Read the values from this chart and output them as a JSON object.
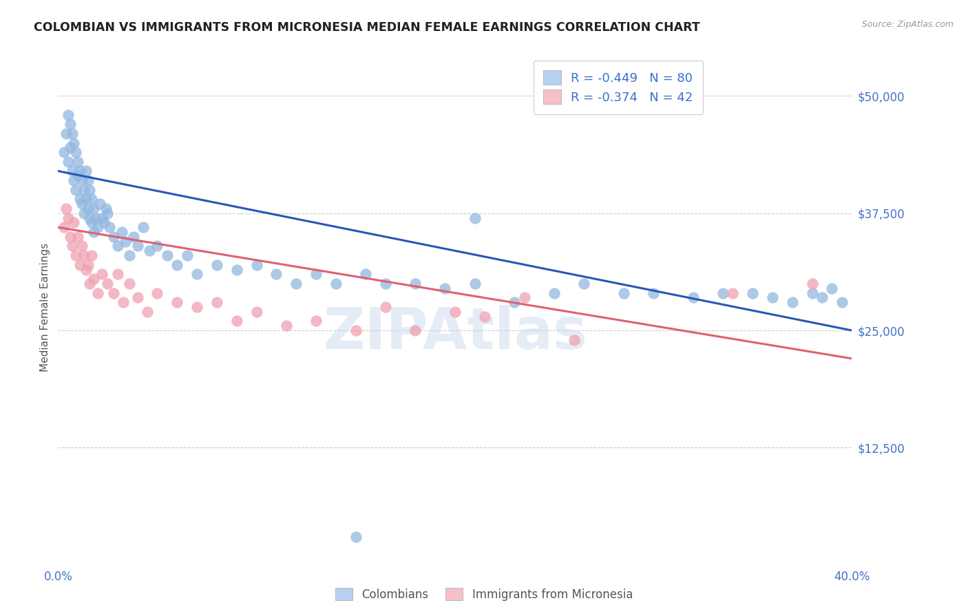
{
  "title": "COLOMBIAN VS IMMIGRANTS FROM MICRONESIA MEDIAN FEMALE EARNINGS CORRELATION CHART",
  "source": "Source: ZipAtlas.com",
  "ylabel": "Median Female Earnings",
  "xlim": [
    0.0,
    0.4
  ],
  "ylim": [
    0,
    55000
  ],
  "yticks": [
    12500,
    25000,
    37500,
    50000
  ],
  "ytick_labels": [
    "$12,500",
    "$25,000",
    "$37,500",
    "$50,000"
  ],
  "xticks": [
    0.0,
    0.05,
    0.1,
    0.15,
    0.2,
    0.25,
    0.3,
    0.35,
    0.4
  ],
  "xtick_labels": [
    "0.0%",
    "",
    "",
    "",
    "",
    "",
    "",
    "",
    "40.0%"
  ],
  "legend_entries": [
    {
      "label": "R = -0.449   N = 80",
      "color": "#b8d0f0"
    },
    {
      "label": "R = -0.374   N = 42",
      "color": "#f5c0ca"
    }
  ],
  "legend_bottom": [
    "Colombians",
    "Immigrants from Micronesia"
  ],
  "legend_bottom_colors": [
    "#b8d0f0",
    "#f5c0ca"
  ],
  "blue_color": "#92b8e0",
  "pink_color": "#f0a0b0",
  "blue_line_color": "#2855b8",
  "pink_line_color": "#e06070",
  "blue_line_x": [
    0.0,
    0.4
  ],
  "blue_line_y": [
    42000,
    25000
  ],
  "pink_line_x": [
    0.0,
    0.4
  ],
  "pink_line_y": [
    36000,
    22000
  ],
  "grid_color": "#cccccc",
  "bg_color": "#ffffff",
  "title_color": "#222222",
  "axis_label_color": "#555555",
  "tick_color": "#4472c4",
  "watermark_color": "#c5d5ea",
  "watermark_alpha": 0.45,
  "blue_scatter_x": [
    0.003,
    0.004,
    0.005,
    0.005,
    0.006,
    0.006,
    0.007,
    0.007,
    0.008,
    0.008,
    0.009,
    0.009,
    0.01,
    0.01,
    0.011,
    0.011,
    0.012,
    0.012,
    0.013,
    0.013,
    0.014,
    0.014,
    0.015,
    0.015,
    0.016,
    0.016,
    0.017,
    0.017,
    0.018,
    0.018,
    0.019,
    0.02,
    0.021,
    0.022,
    0.023,
    0.024,
    0.025,
    0.026,
    0.028,
    0.03,
    0.032,
    0.034,
    0.036,
    0.038,
    0.04,
    0.043,
    0.046,
    0.05,
    0.055,
    0.06,
    0.065,
    0.07,
    0.08,
    0.09,
    0.1,
    0.11,
    0.12,
    0.13,
    0.14,
    0.155,
    0.165,
    0.18,
    0.195,
    0.21,
    0.23,
    0.25,
    0.265,
    0.285,
    0.3,
    0.32,
    0.335,
    0.35,
    0.36,
    0.37,
    0.38,
    0.385,
    0.39,
    0.395,
    0.21,
    0.15
  ],
  "blue_scatter_y": [
    44000,
    46000,
    48000,
    43000,
    47000,
    44500,
    46000,
    42000,
    45000,
    41000,
    44000,
    40000,
    43000,
    41500,
    42000,
    39000,
    41000,
    38500,
    40000,
    37500,
    42000,
    39000,
    41000,
    38000,
    40000,
    37000,
    39000,
    36500,
    38000,
    35500,
    37000,
    36000,
    38500,
    37000,
    36500,
    38000,
    37500,
    36000,
    35000,
    34000,
    35500,
    34500,
    33000,
    35000,
    34000,
    36000,
    33500,
    34000,
    33000,
    32000,
    33000,
    31000,
    32000,
    31500,
    32000,
    31000,
    30000,
    31000,
    30000,
    31000,
    30000,
    30000,
    29500,
    30000,
    28000,
    29000,
    30000,
    29000,
    29000,
    28500,
    29000,
    29000,
    28500,
    28000,
    29000,
    28500,
    29500,
    28000,
    37000,
    3000
  ],
  "pink_scatter_x": [
    0.003,
    0.004,
    0.005,
    0.006,
    0.007,
    0.008,
    0.009,
    0.01,
    0.011,
    0.012,
    0.013,
    0.014,
    0.015,
    0.016,
    0.017,
    0.018,
    0.02,
    0.022,
    0.025,
    0.028,
    0.03,
    0.033,
    0.036,
    0.04,
    0.045,
    0.05,
    0.06,
    0.07,
    0.08,
    0.09,
    0.1,
    0.115,
    0.13,
    0.15,
    0.165,
    0.18,
    0.2,
    0.215,
    0.235,
    0.26,
    0.34,
    0.38
  ],
  "pink_scatter_y": [
    36000,
    38000,
    37000,
    35000,
    34000,
    36500,
    33000,
    35000,
    32000,
    34000,
    33000,
    31500,
    32000,
    30000,
    33000,
    30500,
    29000,
    31000,
    30000,
    29000,
    31000,
    28000,
    30000,
    28500,
    27000,
    29000,
    28000,
    27500,
    28000,
    26000,
    27000,
    25500,
    26000,
    25000,
    27500,
    25000,
    27000,
    26500,
    28500,
    24000,
    29000,
    30000
  ]
}
